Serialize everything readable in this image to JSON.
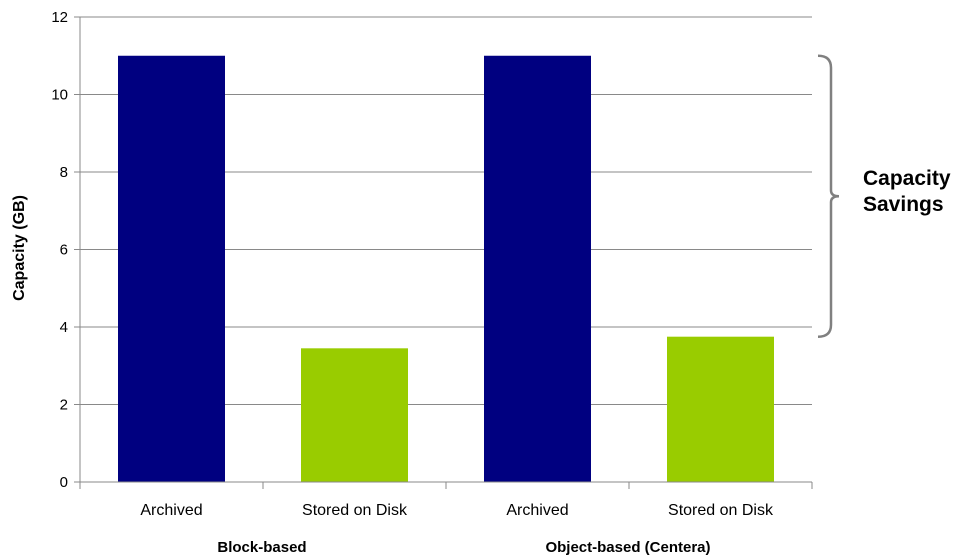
{
  "chart_data": {
    "type": "bar",
    "ylabel": "Capacity (GB)",
    "ylim": [
      0,
      12
    ],
    "yticks": [
      "0",
      "2",
      "4",
      "6",
      "8",
      "10",
      "12"
    ],
    "grid": true,
    "groups": [
      "Block-based",
      "Object-based  (Centera)"
    ],
    "categories": [
      "Archived",
      "Stored on Disk",
      "Archived",
      "Stored on Disk"
    ],
    "values": [
      11,
      3.45,
      11,
      3.75
    ],
    "bar_colors": [
      "#000080",
      "#99CC00",
      "#000080",
      "#99CC00"
    ],
    "annotation": {
      "lines": [
        "Capacity",
        "Savings"
      ],
      "from_value": 11,
      "to_value": 3.75
    }
  }
}
